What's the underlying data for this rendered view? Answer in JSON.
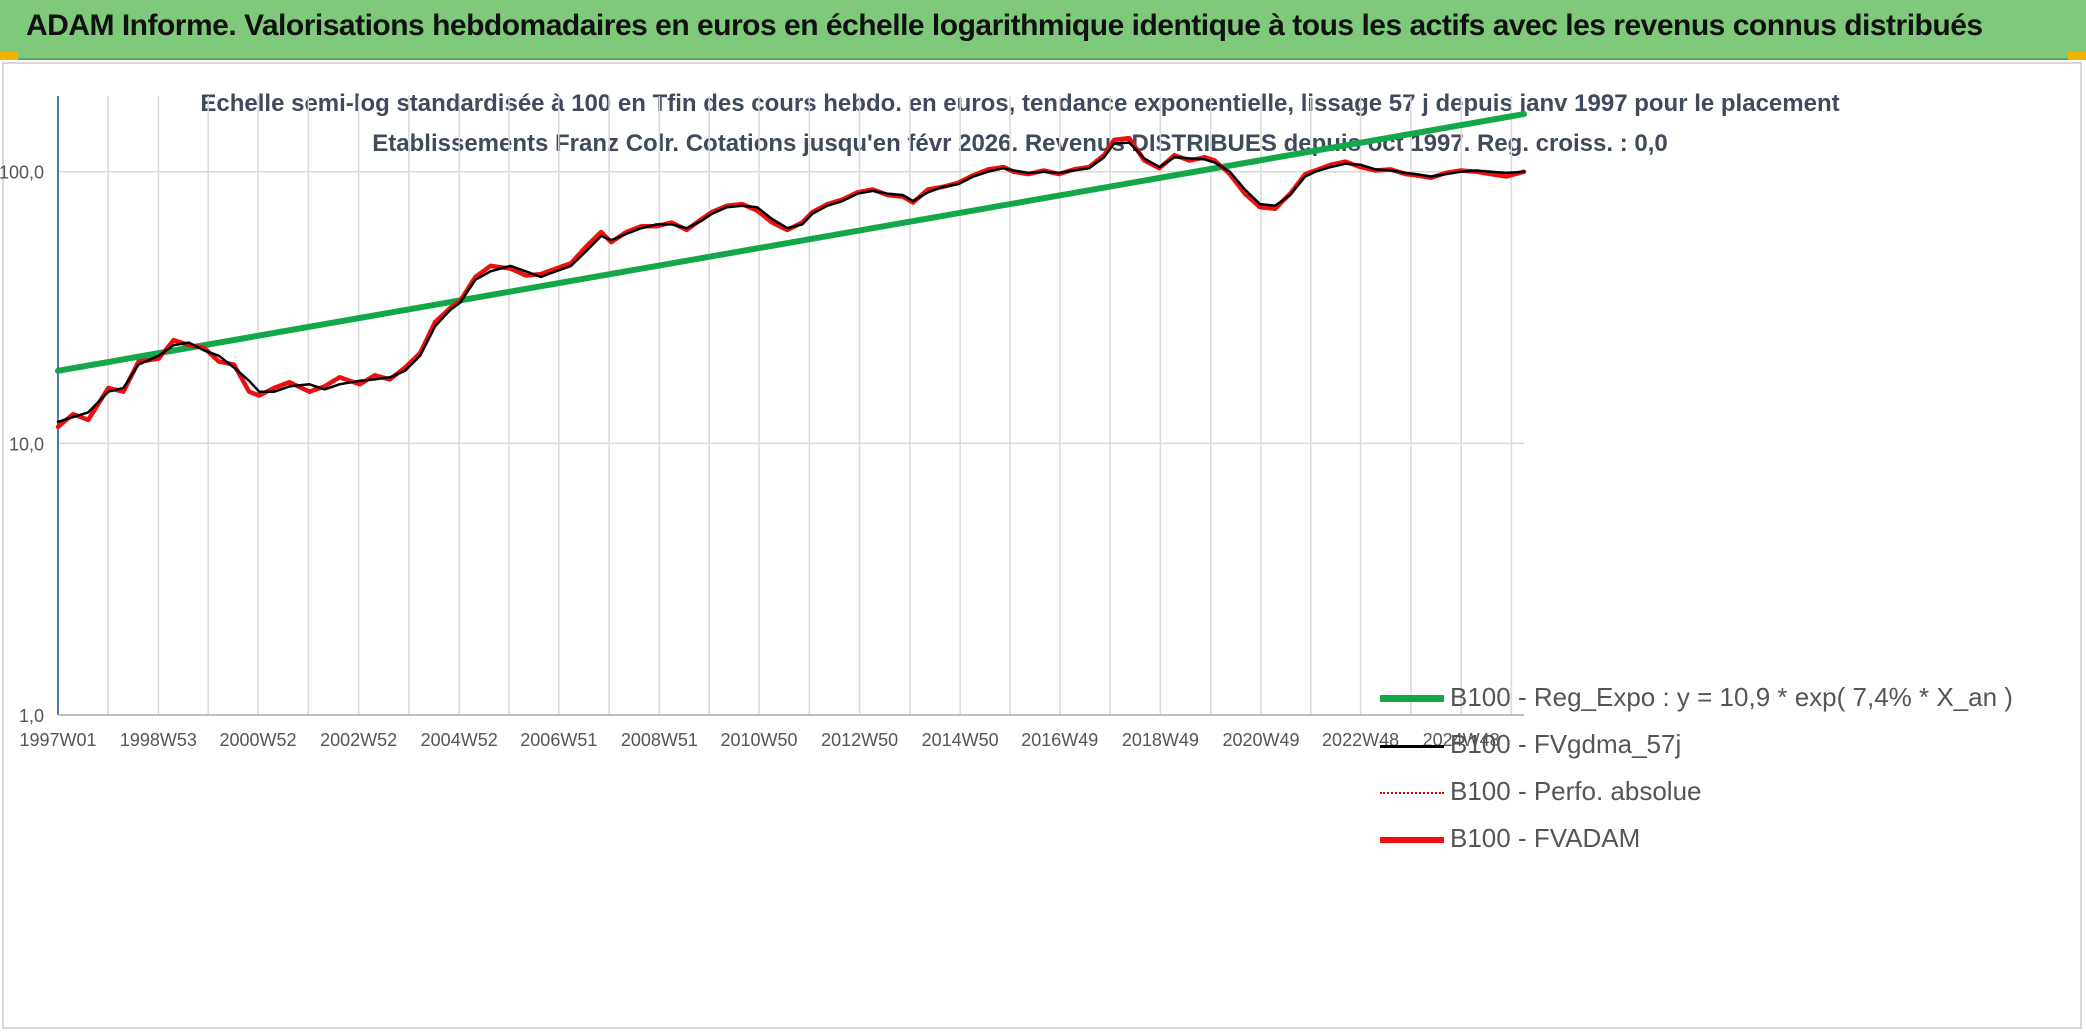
{
  "header": {
    "title": "ADAM Informe. Valorisations hebdomadaires en euros en échelle logarithmique identique à tous les actifs avec les revenus connus distribués"
  },
  "colors": {
    "banner": "#7ec97a",
    "regression": "#12a84a",
    "moving_average": "#000000",
    "perfo": "#e00000",
    "fvadam": "#ee1010"
  },
  "chart_data": {
    "type": "line",
    "title": "Echelle semi-log standardisée à 100 en Tfin des cours hebdo. en euros, tendance exponentielle, lissage 57 j depuis janv 1997 pour le placement Etablissements Franz Colr. Cotations jusqu'en févr 2026. Revenus DISTRIBUES depuis oct 1997. Reg. croiss. : 0,0",
    "y_scale": "log",
    "ylim": [
      1,
      190
    ],
    "y_ticks": [
      "1,0",
      "10,0",
      "100,0"
    ],
    "xlim": [
      1997.0,
      2026.15
    ],
    "x_ticks": [
      "1997W01",
      "1998W53",
      "2000W52",
      "2002W52",
      "2004W52",
      "2006W51",
      "2008W51",
      "2010W50",
      "2012W50",
      "2014W50",
      "2016W49",
      "2018W49",
      "2020W49",
      "2022W48",
      "2024W48"
    ],
    "grid": true,
    "legend_position": "bottom-right",
    "series": [
      {
        "name": "B100 - Reg_Expo : y = 10,9 * exp( 7,4% *  X_an )",
        "x": [
          1997.0,
          2026.15
        ],
        "values": [
          18.5,
          163
        ]
      },
      {
        "name": "B100 - FVgdma_57j",
        "x": [
          1997.0,
          1997.3,
          1997.6,
          1998.0,
          1998.3,
          1998.6,
          1999.0,
          1999.3,
          1999.6,
          1999.9,
          2000.2,
          2000.5,
          2000.8,
          2001.0,
          2001.3,
          2001.6,
          2002.0,
          2002.3,
          2002.6,
          2003.0,
          2003.3,
          2003.6,
          2003.9,
          2004.2,
          2004.5,
          2004.8,
          2005.0,
          2005.3,
          2005.6,
          2006.0,
          2006.3,
          2006.6,
          2006.9,
          2007.2,
          2007.5,
          2007.8,
          2008.0,
          2008.3,
          2008.6,
          2008.9,
          2009.2,
          2009.5,
          2009.8,
          2010.0,
          2010.3,
          2010.6,
          2010.9,
          2011.2,
          2011.5,
          2011.8,
          2012.0,
          2012.3,
          2012.6,
          2012.9,
          2013.2,
          2013.5,
          2013.8,
          2014.0,
          2014.3,
          2014.6,
          2014.9,
          2015.2,
          2015.5,
          2015.8,
          2016.0,
          2016.3,
          2016.6,
          2016.9,
          2017.2,
          2017.5,
          2017.8,
          2018.0,
          2018.3,
          2018.6,
          2018.9,
          2019.2,
          2019.5,
          2019.8,
          2020.0,
          2020.3,
          2020.6,
          2020.9,
          2021.2,
          2021.5,
          2021.8,
          2022.0,
          2022.3,
          2022.6,
          2022.9,
          2023.2,
          2023.5,
          2023.8,
          2024.0,
          2024.3,
          2024.6,
          2024.9,
          2025.2,
          2025.5,
          2025.8,
          2026.15
        ],
        "values": [
          12,
          12.5,
          13,
          15.5,
          16,
          19.5,
          21,
          23,
          23.5,
          22,
          21,
          19,
          17,
          15.5,
          15.5,
          16.2,
          16.5,
          15.8,
          16.5,
          17,
          17.2,
          17.5,
          18.5,
          21,
          27,
          31,
          33,
          40,
          43,
          45,
          43,
          41,
          43,
          45,
          51,
          58,
          56,
          59,
          62,
          64,
          64,
          62,
          66,
          70,
          74,
          75,
          74,
          67,
          62,
          64,
          70,
          75,
          78,
          83,
          85,
          83,
          82,
          78,
          84,
          88,
          90,
          96,
          100,
          103,
          101,
          99,
          100,
          99,
          101,
          103,
          113,
          127,
          128,
          112,
          104,
          113,
          112,
          111,
          108,
          100,
          86,
          76,
          75,
          82,
          96,
          100,
          104,
          107,
          106,
          102,
          101,
          99,
          98,
          96,
          98,
          100,
          101,
          100,
          99,
          100
        ]
      },
      {
        "name": "B100 - Perfo. absolue",
        "values": []
      },
      {
        "name": "B100 - FVADAM",
        "x": [
          1997.0,
          1997.3,
          1997.6,
          1998.0,
          1998.3,
          1998.6,
          1999.0,
          1999.3,
          1999.6,
          1999.9,
          2000.2,
          2000.5,
          2000.8,
          2001.0,
          2001.3,
          2001.6,
          2002.0,
          2002.3,
          2002.6,
          2003.0,
          2003.3,
          2003.6,
          2003.9,
          2004.2,
          2004.5,
          2004.8,
          2005.0,
          2005.3,
          2005.6,
          2006.0,
          2006.3,
          2006.6,
          2006.9,
          2007.2,
          2007.5,
          2007.8,
          2008.0,
          2008.3,
          2008.6,
          2008.9,
          2009.2,
          2009.5,
          2009.8,
          2010.0,
          2010.3,
          2010.6,
          2010.9,
          2011.2,
          2011.5,
          2011.8,
          2012.0,
          2012.3,
          2012.6,
          2012.9,
          2013.2,
          2013.5,
          2013.8,
          2014.0,
          2014.3,
          2014.6,
          2014.9,
          2015.2,
          2015.5,
          2015.8,
          2016.0,
          2016.3,
          2016.6,
          2016.9,
          2017.2,
          2017.5,
          2017.8,
          2018.0,
          2018.3,
          2018.6,
          2018.9,
          2019.2,
          2019.5,
          2019.8,
          2020.0,
          2020.3,
          2020.6,
          2020.9,
          2021.2,
          2021.5,
          2021.8,
          2022.0,
          2022.3,
          2022.6,
          2022.9,
          2023.2,
          2023.5,
          2023.8,
          2024.0,
          2024.3,
          2024.6,
          2024.9,
          2025.2,
          2025.5,
          2025.8,
          2026.15
        ],
        "values": [
          11.5,
          12.8,
          12.2,
          16,
          15.5,
          20,
          20.5,
          24,
          23,
          22.5,
          20,
          19.5,
          15.5,
          15,
          16,
          16.8,
          15.5,
          16.2,
          17.5,
          16.5,
          17.8,
          17.2,
          19,
          21.5,
          28,
          31.5,
          33.5,
          41,
          45,
          44,
          41.5,
          42,
          44,
          46,
          53,
          60,
          55,
          60,
          63,
          63,
          65,
          61,
          67,
          71,
          75,
          76,
          72,
          65,
          61,
          65,
          71,
          76,
          79,
          84,
          86,
          82,
          81,
          77,
          86,
          88,
          91,
          97,
          102,
          104,
          100,
          98,
          101,
          98,
          102,
          104,
          115,
          131,
          133,
          110,
          103,
          115,
          110,
          113,
          110,
          98,
          83,
          74,
          73,
          83,
          98,
          101,
          106,
          109,
          104,
          101,
          102,
          98,
          97,
          95,
          99,
          101,
          100,
          98,
          96,
          100
        ]
      }
    ]
  }
}
